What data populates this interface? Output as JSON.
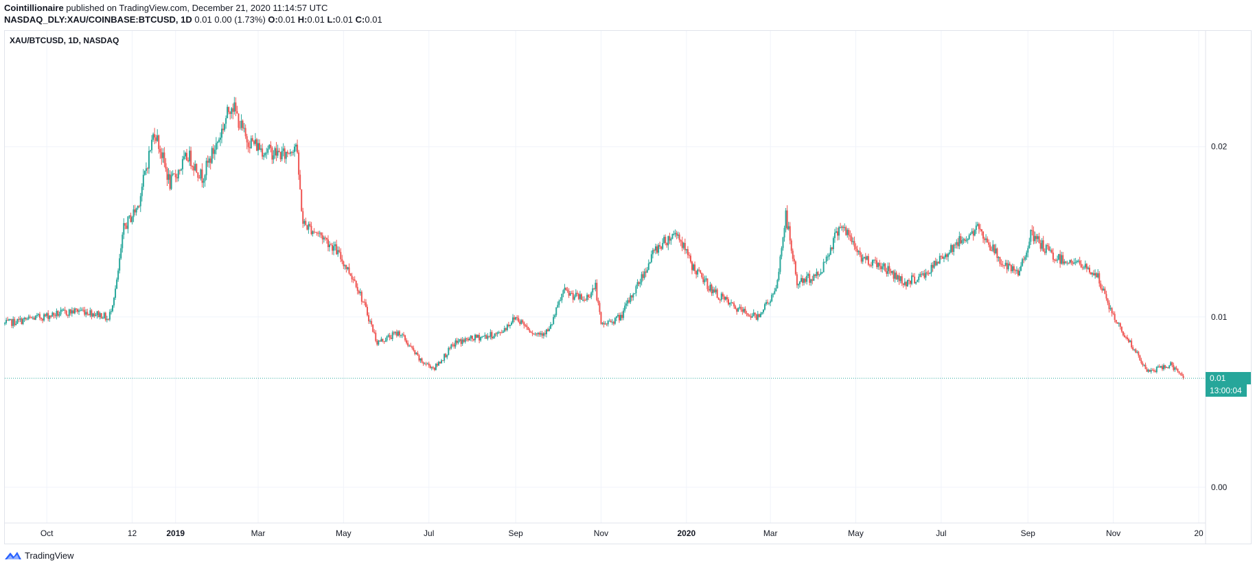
{
  "header": {
    "author": "Cointillionaire",
    "published_text": "published on TradingView.com, December 21, 2020 11:14:57 UTC",
    "symbol_full": "NASDAQ_DLY:XAU/COINBASE:BTCUSD",
    "interval": "1D",
    "quote_text": "0.01 0.00 (1.73%)",
    "o_label": "O:",
    "o_val": "0.01",
    "h_label": "H:",
    "h_val": "0.01",
    "l_label": "L:",
    "l_val": "0.01",
    "c_label": "C:",
    "c_val": "0.01"
  },
  "legend": {
    "symbol": "XAU/BTCUSD, 1D, NASDAQ"
  },
  "price_tag": {
    "value": "0.01",
    "countdown": "13:00:04"
  },
  "brand": {
    "name": "TradingView"
  },
  "colors": {
    "up": "#26a69a",
    "down": "#ef5350",
    "grid": "#f0f3fa"
  },
  "chart_data": {
    "type": "candlestick",
    "y_ticks": [
      "0.02",
      "0.01",
      "0.00"
    ],
    "y_tick_values": [
      0.02,
      0.01,
      0.0
    ],
    "ylim": [
      -0.0021,
      0.0268
    ],
    "x_ticks": [
      {
        "label": "Oct",
        "date": "2018-10-01",
        "bold": false
      },
      {
        "label": "12",
        "date": "2018-12-01",
        "bold": false
      },
      {
        "label": "2019",
        "date": "2019-01-01",
        "bold": true
      },
      {
        "label": "Mar",
        "date": "2019-03-01",
        "bold": false
      },
      {
        "label": "May",
        "date": "2019-05-01",
        "bold": false
      },
      {
        "label": "Jul",
        "date": "2019-07-01",
        "bold": false
      },
      {
        "label": "Sep",
        "date": "2019-09-01",
        "bold": false
      },
      {
        "label": "Nov",
        "date": "2019-11-01",
        "bold": false
      },
      {
        "label": "2020",
        "date": "2020-01-01",
        "bold": true
      },
      {
        "label": "Mar",
        "date": "2020-03-01",
        "bold": false
      },
      {
        "label": "May",
        "date": "2020-05-01",
        "bold": false
      },
      {
        "label": "Jul",
        "date": "2020-07-01",
        "bold": false
      },
      {
        "label": "Sep",
        "date": "2020-09-01",
        "bold": false
      },
      {
        "label": "Nov",
        "date": "2020-11-01",
        "bold": false
      },
      {
        "label": "20",
        "date": "2021-01-01",
        "bold": false
      }
    ],
    "last_close": 0.0064,
    "trend": [
      [
        "2018-09-01",
        0.0096
      ],
      [
        "2018-09-20",
        0.0099
      ],
      [
        "2018-10-10",
        0.0102
      ],
      [
        "2018-10-25",
        0.0104
      ],
      [
        "2018-11-10",
        0.0101
      ],
      [
        "2018-11-14",
        0.0098
      ],
      [
        "2018-11-20",
        0.012
      ],
      [
        "2018-11-25",
        0.0152
      ],
      [
        "2018-12-05",
        0.0165
      ],
      [
        "2018-12-17",
        0.021
      ],
      [
        "2018-12-28",
        0.0178
      ],
      [
        "2019-01-10",
        0.0195
      ],
      [
        "2019-01-20",
        0.0182
      ],
      [
        "2019-02-01",
        0.0205
      ],
      [
        "2019-02-10",
        0.0226
      ],
      [
        "2019-02-20",
        0.0205
      ],
      [
        "2019-03-05",
        0.0198
      ],
      [
        "2019-03-20",
        0.0195
      ],
      [
        "2019-03-28",
        0.0202
      ],
      [
        "2019-04-02",
        0.0155
      ],
      [
        "2019-04-15",
        0.0148
      ],
      [
        "2019-04-25",
        0.014
      ],
      [
        "2019-05-10",
        0.012
      ],
      [
        "2019-05-18",
        0.0102
      ],
      [
        "2019-05-25",
        0.0085
      ],
      [
        "2019-06-10",
        0.0091
      ],
      [
        "2019-06-25",
        0.0074
      ],
      [
        "2019-07-05",
        0.007
      ],
      [
        "2019-07-20",
        0.0085
      ],
      [
        "2019-08-05",
        0.0088
      ],
      [
        "2019-08-20",
        0.009
      ],
      [
        "2019-09-01",
        0.01
      ],
      [
        "2019-09-15",
        0.009
      ],
      [
        "2019-09-25",
        0.0092
      ],
      [
        "2019-10-05",
        0.0115
      ],
      [
        "2019-10-20",
        0.011
      ],
      [
        "2019-10-28",
        0.0118
      ],
      [
        "2019-11-01",
        0.0095
      ],
      [
        "2019-11-15",
        0.01
      ],
      [
        "2019-12-01",
        0.0125
      ],
      [
        "2019-12-10",
        0.014
      ],
      [
        "2019-12-25",
        0.015
      ],
      [
        "2020-01-05",
        0.013
      ],
      [
        "2020-01-20",
        0.0115
      ],
      [
        "2020-02-05",
        0.0105
      ],
      [
        "2020-02-20",
        0.01
      ],
      [
        "2020-03-05",
        0.0115
      ],
      [
        "2020-03-12",
        0.016
      ],
      [
        "2020-03-20",
        0.012
      ],
      [
        "2020-04-05",
        0.0125
      ],
      [
        "2020-04-20",
        0.0155
      ],
      [
        "2020-05-05",
        0.0135
      ],
      [
        "2020-05-20",
        0.013
      ],
      [
        "2020-06-05",
        0.012
      ],
      [
        "2020-06-20",
        0.0125
      ],
      [
        "2020-07-10",
        0.0142
      ],
      [
        "2020-07-28",
        0.0152
      ],
      [
        "2020-08-15",
        0.013
      ],
      [
        "2020-08-25",
        0.0125
      ],
      [
        "2020-09-03",
        0.0148
      ],
      [
        "2020-09-20",
        0.0135
      ],
      [
        "2020-10-05",
        0.0132
      ],
      [
        "2020-10-20",
        0.0125
      ],
      [
        "2020-11-01",
        0.01
      ],
      [
        "2020-11-15",
        0.0082
      ],
      [
        "2020-11-25",
        0.0068
      ],
      [
        "2020-12-05",
        0.007
      ],
      [
        "2020-12-12",
        0.0072
      ],
      [
        "2020-12-21",
        0.0064
      ]
    ]
  }
}
